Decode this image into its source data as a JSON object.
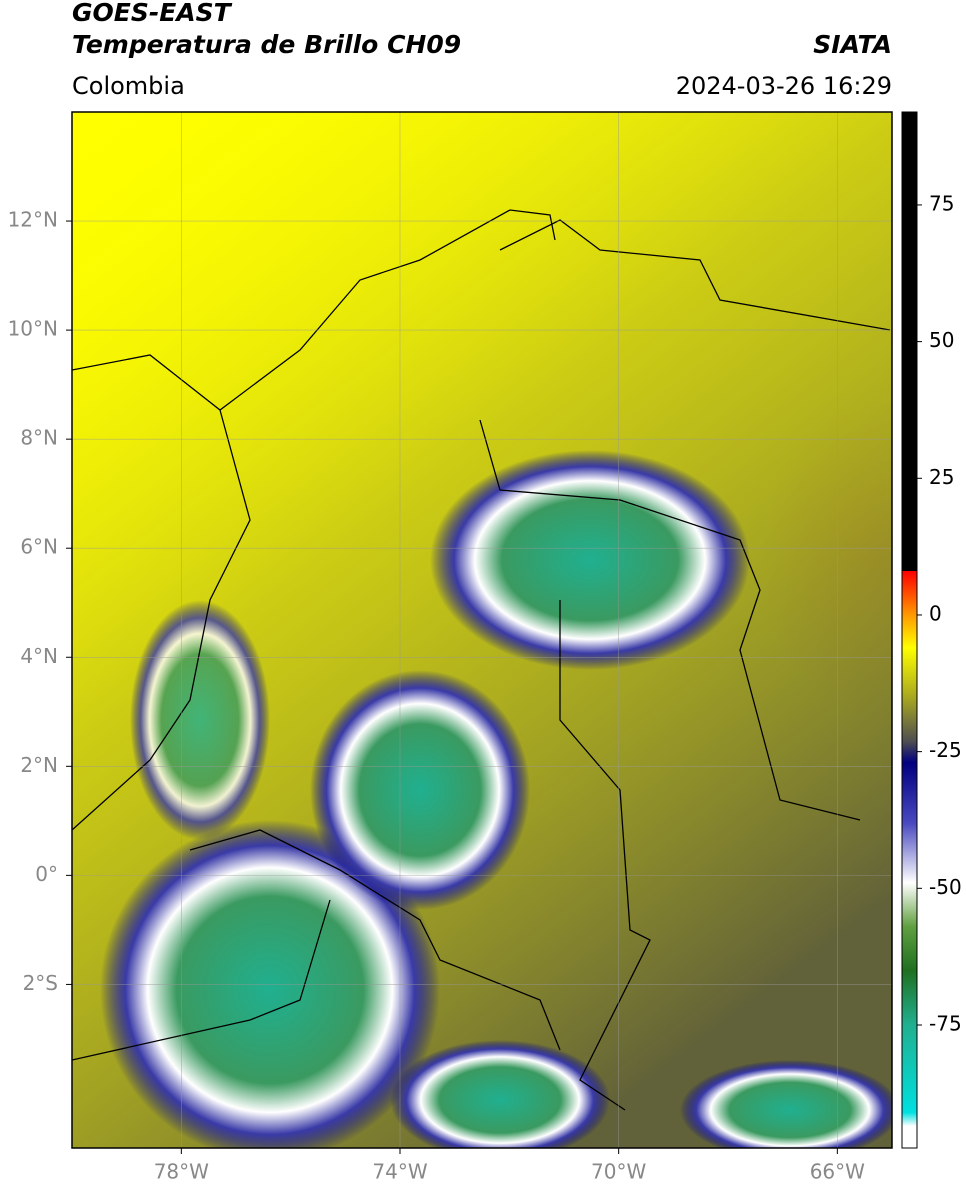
{
  "header": {
    "title": "GOES-EAST",
    "subtitle": "Temperatura de Brillo CH09",
    "source": "SIATA",
    "region": "Colombia",
    "datetime": "2024-03-26 16:29"
  },
  "map": {
    "lon_range": [
      -80,
      -65
    ],
    "lat_range": [
      -5,
      14
    ],
    "grid": true,
    "lon_ticks": [
      {
        "value": -78,
        "label": "78°W"
      },
      {
        "value": -74,
        "label": "74°W"
      },
      {
        "value": -70,
        "label": "70°W"
      },
      {
        "value": -66,
        "label": "66°W"
      }
    ],
    "lat_ticks": [
      {
        "value": 12,
        "label": "12°N"
      },
      {
        "value": 10,
        "label": "10°N"
      },
      {
        "value": 8,
        "label": "8°N"
      },
      {
        "value": 6,
        "label": "6°N"
      },
      {
        "value": 4,
        "label": "4°N"
      },
      {
        "value": 2,
        "label": "2°N"
      },
      {
        "value": 0,
        "label": "0°"
      },
      {
        "value": -2,
        "label": "2°S"
      }
    ]
  },
  "colorbar": {
    "range": [
      -97.5,
      92
    ],
    "ticks": [
      75,
      50,
      25,
      0,
      -25,
      -50,
      -75
    ],
    "stops": [
      {
        "value": 92,
        "color": "#000000"
      },
      {
        "value": 8,
        "color": "#000000"
      },
      {
        "value": 8,
        "color": "#ff0000"
      },
      {
        "value": 0,
        "color": "#ff9900"
      },
      {
        "value": -6,
        "color": "#ffff00"
      },
      {
        "value": -15,
        "color": "#a8a820"
      },
      {
        "value": -23,
        "color": "#505050"
      },
      {
        "value": -27,
        "color": "#000080"
      },
      {
        "value": -38,
        "color": "#4848c0"
      },
      {
        "value": -49,
        "color": "#ffffff"
      },
      {
        "value": -57,
        "color": "#60a040"
      },
      {
        "value": -65,
        "color": "#207020"
      },
      {
        "value": -75,
        "color": "#20b090"
      },
      {
        "value": -91,
        "color": "#00e0e0"
      },
      {
        "value": -93.5,
        "color": "#ffffff"
      },
      {
        "value": -97.5,
        "color": "#ffffff"
      }
    ]
  }
}
